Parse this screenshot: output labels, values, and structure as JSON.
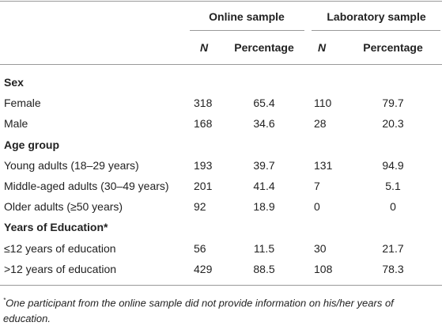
{
  "table": {
    "groups": [
      "Online sample",
      "Laboratory sample"
    ],
    "subheaders": [
      "N",
      "Percentage",
      "N",
      "Percentage"
    ],
    "sections": [
      {
        "title": "Sex",
        "rows": [
          [
            "Female",
            "318",
            "65.4",
            "110",
            "79.7"
          ],
          [
            "Male",
            "168",
            "34.6",
            "28",
            "20.3"
          ]
        ]
      },
      {
        "title": "Age group",
        "rows": [
          [
            "Young adults (18–29 years)",
            "193",
            "39.7",
            "131",
            "94.9"
          ],
          [
            "Middle-aged adults (30–49 years)",
            "201",
            "41.4",
            "7",
            "5.1"
          ],
          [
            "Older adults (≥50 years)",
            "92",
            "18.9",
            "0",
            "0"
          ]
        ]
      },
      {
        "title": "Years of Education*",
        "rows": [
          [
            "≤12 years of education",
            "56",
            "11.5",
            "30",
            "21.7"
          ],
          [
            ">12 years of education",
            "429",
            "88.5",
            "108",
            "78.3"
          ]
        ]
      }
    ],
    "footnote": {
      "marker": "*",
      "text": "One participant from the online sample did not provide information on his/her years of education."
    }
  }
}
